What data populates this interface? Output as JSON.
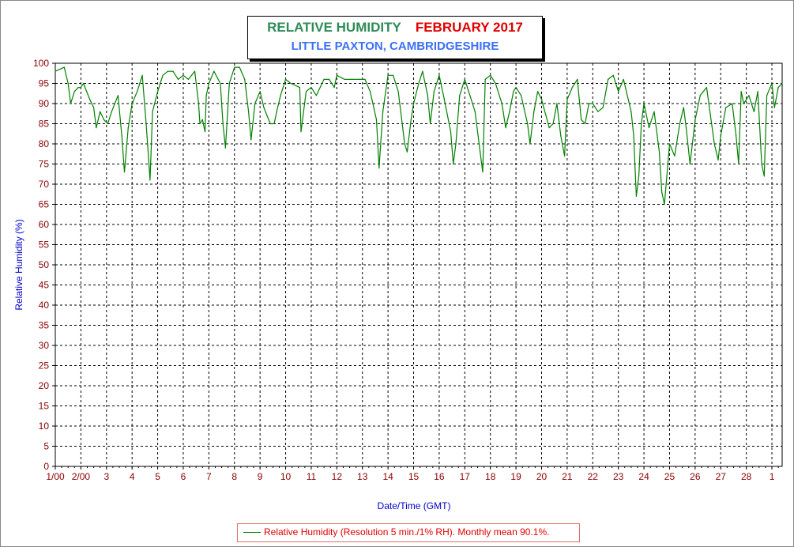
{
  "title": {
    "main_left": "RELATIVE HUMIDITY",
    "main_right": "FEBRUARY 2017",
    "subtitle": "LITTLE PAXTON, CAMBRIDGESHIRE"
  },
  "legend": {
    "text": "Relative Humidity (Resolution 5 min./1% RH). Monthly mean 90.1%."
  },
  "colors": {
    "series": "#008000",
    "axis_text": "#8b0000",
    "axis_label": "#0000cc",
    "title_left": "#2e8b57",
    "title_right": "#e00000",
    "subtitle": "#3b6ff5"
  },
  "chart_data": {
    "type": "line",
    "title": "RELATIVE HUMIDITY FEBRUARY 2017",
    "subtitle": "LITTLE PAXTON, CAMBRIDGESHIRE",
    "xlabel": "Date/Time (GMT)",
    "ylabel": "Relative Humidity (%)",
    "ylim": [
      0,
      100
    ],
    "yticks": [
      0,
      5,
      10,
      15,
      20,
      25,
      30,
      35,
      40,
      45,
      50,
      55,
      60,
      65,
      70,
      75,
      80,
      85,
      90,
      95,
      100
    ],
    "xlim": [
      1,
      29.4
    ],
    "x_ticks": [
      {
        "x": 1,
        "label": "1/00"
      },
      {
        "x": 2,
        "label": "2/00"
      },
      {
        "x": 3,
        "label": "3"
      },
      {
        "x": 4,
        "label": "4"
      },
      {
        "x": 5,
        "label": "5"
      },
      {
        "x": 6,
        "label": "6"
      },
      {
        "x": 7,
        "label": "7"
      },
      {
        "x": 8,
        "label": "8"
      },
      {
        "x": 9,
        "label": "9"
      },
      {
        "x": 10,
        "label": "10"
      },
      {
        "x": 11,
        "label": "11"
      },
      {
        "x": 12,
        "label": "12"
      },
      {
        "x": 13,
        "label": "13"
      },
      {
        "x": 14,
        "label": "14"
      },
      {
        "x": 15,
        "label": "15"
      },
      {
        "x": 16,
        "label": "16"
      },
      {
        "x": 17,
        "label": "17"
      },
      {
        "x": 18,
        "label": "18"
      },
      {
        "x": 19,
        "label": "19"
      },
      {
        "x": 20,
        "label": "20"
      },
      {
        "x": 21,
        "label": "21"
      },
      {
        "x": 22,
        "label": "22"
      },
      {
        "x": 23,
        "label": "23"
      },
      {
        "x": 24,
        "label": "24"
      },
      {
        "x": 25,
        "label": "25"
      },
      {
        "x": 26,
        "label": "26"
      },
      {
        "x": 27,
        "label": "27"
      },
      {
        "x": 28,
        "label": "28"
      },
      {
        "x": 29,
        "label": "1"
      }
    ],
    "grid": true,
    "legend_position": "bottom",
    "series": [
      {
        "name": "Relative Humidity (Resolution 5 min./1% RH). Monthly mean 90.1%.",
        "x": [
          1.0,
          1.35,
          1.5,
          1.6,
          1.75,
          1.9,
          2.0,
          2.1,
          2.35,
          2.5,
          2.6,
          2.75,
          2.9,
          3.05,
          3.2,
          3.45,
          3.6,
          3.7,
          3.85,
          4.0,
          4.2,
          4.4,
          4.55,
          4.65,
          4.7,
          4.8,
          5.0,
          5.2,
          5.4,
          5.6,
          5.8,
          6.0,
          6.2,
          6.45,
          6.6,
          6.65,
          6.75,
          6.85,
          6.9,
          7.0,
          7.2,
          7.45,
          7.55,
          7.65,
          7.8,
          8.0,
          8.2,
          8.4,
          8.55,
          8.65,
          8.8,
          9.0,
          9.15,
          9.4,
          9.55,
          9.65,
          9.8,
          10.0,
          10.2,
          10.55,
          10.6,
          10.8,
          11.0,
          11.2,
          11.5,
          11.7,
          11.9,
          12.0,
          12.3,
          12.6,
          12.9,
          13.1,
          13.3,
          13.55,
          13.65,
          13.8,
          14.0,
          14.2,
          14.4,
          14.65,
          14.75,
          14.9,
          15.0,
          15.2,
          15.35,
          15.55,
          15.65,
          15.8,
          16.0,
          16.2,
          16.45,
          16.55,
          16.65,
          16.8,
          17.0,
          17.2,
          17.4,
          17.6,
          17.7,
          17.8,
          18.0,
          18.2,
          18.45,
          18.6,
          18.75,
          18.9,
          19.0,
          19.2,
          19.45,
          19.55,
          19.7,
          19.85,
          20.0,
          20.3,
          20.45,
          20.6,
          20.75,
          20.9,
          21.0,
          21.2,
          21.4,
          21.55,
          21.7,
          21.85,
          22.0,
          22.2,
          22.4,
          22.6,
          22.8,
          23.0,
          23.2,
          23.35,
          23.5,
          23.6,
          23.7,
          23.8,
          23.9,
          24.0,
          24.2,
          24.4,
          24.6,
          24.7,
          24.8,
          25.0,
          25.2,
          25.4,
          25.55,
          25.65,
          25.8,
          26.0,
          26.2,
          26.45,
          26.6,
          26.75,
          26.9,
          27.0,
          27.2,
          27.45,
          27.6,
          27.7,
          27.8,
          27.9,
          28.1,
          28.3,
          28.45,
          28.6,
          28.7,
          28.8,
          29.0,
          29.1,
          29.25,
          29.4
        ],
        "y": [
          98,
          99,
          95,
          90,
          93,
          94,
          94,
          95,
          91,
          89,
          84,
          88,
          86,
          85,
          88,
          92,
          82,
          73,
          84,
          90,
          93,
          97,
          85,
          76,
          71,
          88,
          93,
          97,
          98,
          98,
          96,
          97,
          96,
          98,
          90,
          85,
          86,
          83,
          92,
          95,
          98,
          95,
          85,
          79,
          95,
          99,
          99,
          96,
          88,
          81,
          90,
          93,
          89,
          85,
          85,
          88,
          92,
          96,
          95,
          94,
          83,
          93,
          94,
          92,
          96,
          96,
          94,
          97,
          96,
          96,
          96,
          96,
          93,
          86,
          74,
          88,
          97,
          97,
          93,
          80,
          78,
          86,
          90,
          95,
          98,
          92,
          85,
          93,
          97,
          91,
          83,
          75,
          80,
          92,
          96,
          92,
          88,
          78,
          73,
          96,
          97,
          95,
          90,
          84,
          88,
          93,
          94,
          92,
          85,
          80,
          88,
          93,
          91,
          84,
          85,
          90,
          82,
          77,
          91,
          94,
          96,
          86,
          85,
          90,
          90,
          88,
          89,
          96,
          97,
          93,
          96,
          92,
          88,
          82,
          67,
          72,
          85,
          90,
          84,
          88,
          78,
          68,
          65,
          80,
          77,
          85,
          89,
          84,
          75,
          86,
          92,
          94,
          87,
          80,
          76,
          82,
          89,
          90,
          82,
          75,
          93,
          90,
          92,
          88,
          93,
          75,
          72,
          92,
          95,
          89,
          94,
          95
        ]
      }
    ]
  }
}
